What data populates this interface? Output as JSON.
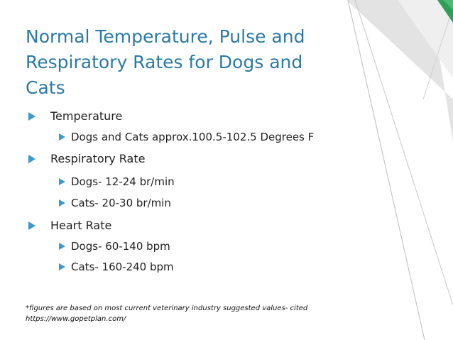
{
  "slide": {
    "title_lines": [
      "Normal Temperature, Pulse and",
      "Respiratory Rates for Dogs and",
      "Cats"
    ],
    "items": [
      {
        "level": 1,
        "text": "Temperature"
      },
      {
        "level": 2,
        "text": "Dogs and Cats approx.100.5-102.5 Degrees F"
      },
      {
        "level": 1,
        "text": "Respiratory Rate"
      },
      {
        "level": 2,
        "text": "Dogs- 12-24 br/min"
      },
      {
        "level": 2,
        "text": "Cats- 20-30 br/min"
      },
      {
        "level": 1,
        "text": "Heart Rate"
      },
      {
        "level": 2,
        "text": "Dogs- 60-140 bpm"
      },
      {
        "level": 2,
        "text": "Cats- 160-240 bpm"
      }
    ],
    "footnote": {
      "line1": "*figures are based on most current veterinary industry suggested values- cited",
      "line2": "https://www.gopetplan.com/"
    },
    "bullet_icon": "triangle-arrow-icon",
    "colors": {
      "title": "#2a7aa5",
      "bullet": "#3a9ad0",
      "text": "#222222",
      "accent_green": "#2f9e5a",
      "deco_gray": "#bdbdbd"
    }
  }
}
